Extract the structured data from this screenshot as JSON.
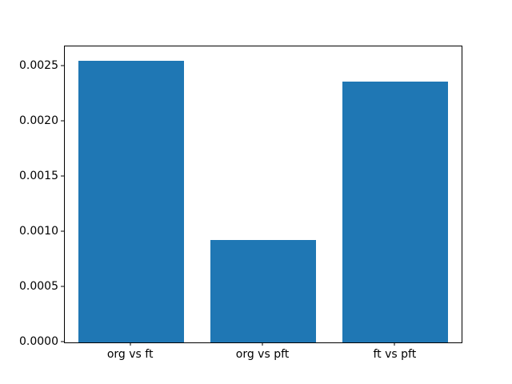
{
  "chart_data": {
    "type": "bar",
    "categories": [
      "org vs ft",
      "org vs pft",
      "ft vs pft"
    ],
    "values": [
      0.00255,
      0.00093,
      0.00236
    ],
    "title": "",
    "xlabel": "",
    "ylabel": "",
    "ylim": [
      0,
      0.0026775
    ],
    "yticks": [
      0.0,
      0.0005,
      0.001,
      0.0015,
      0.002,
      0.0025
    ],
    "ytick_labels": [
      "0.0000",
      "0.0005",
      "0.0010",
      "0.0015",
      "0.0020",
      "0.0025"
    ],
    "bar_width_fraction": 0.8,
    "bar_color": "#1f77b4",
    "spine_color": "#000000",
    "background_color": "#ffffff",
    "grid": false,
    "legend": null
  }
}
